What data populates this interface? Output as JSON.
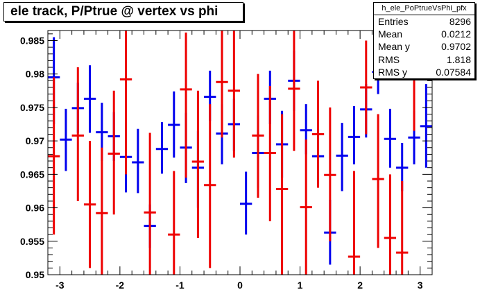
{
  "title": "ele track, P/Ptrue @ vertex vs phi",
  "stats": {
    "name": "h_ele_PoPtrueVsPhi_pfx",
    "rows": [
      {
        "label": "Entries",
        "value": "8296"
      },
      {
        "label": "Mean",
        "value": "0.0212"
      },
      {
        "label": "Mean y",
        "value": "0.9702"
      },
      {
        "label": "RMS",
        "value": "1.818"
      },
      {
        "label": "RMS y",
        "value": "0.07584"
      }
    ]
  },
  "chart_data": {
    "type": "scatter",
    "title": "ele track, P/Ptrue @ vertex vs phi",
    "xlabel": "",
    "ylabel": "",
    "xlim": [
      -3.2,
      3.2
    ],
    "ylim": [
      0.95,
      0.9865
    ],
    "grid": false,
    "x_ticks": [
      -3,
      -2,
      -1,
      0,
      1,
      2,
      3
    ],
    "x_tick_labels": [
      "-3",
      "-2",
      "-1",
      "0",
      "1",
      "2",
      "3"
    ],
    "y_ticks": [
      0.95,
      0.955,
      0.96,
      0.965,
      0.97,
      0.975,
      0.98,
      0.985
    ],
    "y_tick_labels": [
      "0.95",
      "0.955",
      "0.96",
      "0.965",
      "0.97",
      "0.975",
      "0.98",
      "0.985"
    ],
    "colors": {
      "blue": "#0000ee",
      "red": "#ee0000"
    },
    "bin_half_width": 0.1,
    "series": [
      {
        "color": "#0000ee",
        "points": [
          {
            "x": -3.1,
            "y": 0.9795,
            "lo": 0.9725,
            "hi": 0.9855
          },
          {
            "x": -2.9,
            "y": 0.9702,
            "lo": 0.9655,
            "hi": 0.9748
          },
          {
            "x": -2.7,
            "y": 0.9749,
            "lo": 0.9712,
            "hi": 0.9787
          },
          {
            "x": -2.5,
            "y": 0.9763,
            "lo": 0.9712,
            "hi": 0.9813
          },
          {
            "x": -2.3,
            "y": 0.9713,
            "lo": 0.967,
            "hi": 0.9757
          },
          {
            "x": -2.1,
            "y": 0.9707,
            "lo": 0.967,
            "hi": 0.9743
          },
          {
            "x": -1.9,
            "y": 0.9676,
            "lo": 0.9623,
            "hi": 0.9728
          },
          {
            "x": -1.7,
            "y": 0.9668,
            "lo": 0.9622,
            "hi": 0.9718
          },
          {
            "x": -1.5,
            "y": 0.9573,
            "lo": 0.954,
            "hi": 0.9605
          },
          {
            "x": -1.3,
            "y": 0.9688,
            "lo": 0.9651,
            "hi": 0.9728
          },
          {
            "x": -1.1,
            "y": 0.9724,
            "lo": 0.9675,
            "hi": 0.9774
          },
          {
            "x": -0.9,
            "y": 0.969,
            "lo": 0.9637,
            "hi": 0.9742
          },
          {
            "x": -0.7,
            "y": 0.966,
            "lo": 0.96,
            "hi": 0.9715
          },
          {
            "x": -0.5,
            "y": 0.9766,
            "lo": 0.973,
            "hi": 0.9805
          },
          {
            "x": -0.3,
            "y": 0.9711,
            "lo": 0.9665,
            "hi": 0.9755
          },
          {
            "x": -0.1,
            "y": 0.9725,
            "lo": 0.9685,
            "hi": 0.9763
          },
          {
            "x": 0.1,
            "y": 0.9606,
            "lo": 0.956,
            "hi": 0.9654
          },
          {
            "x": 0.3,
            "y": 0.9682,
            "lo": 0.963,
            "hi": 0.9738
          },
          {
            "x": 0.5,
            "y": 0.9763,
            "lo": 0.9725,
            "hi": 0.9805
          },
          {
            "x": 0.7,
            "y": 0.9695,
            "lo": 0.9645,
            "hi": 0.9745
          },
          {
            "x": 0.9,
            "y": 0.979,
            "lo": 0.9745,
            "hi": 0.9835
          },
          {
            "x": 1.1,
            "y": 0.9716,
            "lo": 0.968,
            "hi": 0.9755
          },
          {
            "x": 1.3,
            "y": 0.9677,
            "lo": 0.9635,
            "hi": 0.9718
          },
          {
            "x": 1.5,
            "y": 0.9563,
            "lo": 0.9515,
            "hi": 0.9612
          },
          {
            "x": 1.7,
            "y": 0.9678,
            "lo": 0.9625,
            "hi": 0.9727
          },
          {
            "x": 1.9,
            "y": 0.9706,
            "lo": 0.9665,
            "hi": 0.9752
          },
          {
            "x": 2.1,
            "y": 0.9747,
            "lo": 0.9705,
            "hi": 0.9785
          },
          {
            "x": 2.3,
            "y": 0.9803,
            "lo": 0.977,
            "hi": 0.9835
          },
          {
            "x": 2.5,
            "y": 0.9703,
            "lo": 0.966,
            "hi": 0.9748
          },
          {
            "x": 2.7,
            "y": 0.966,
            "lo": 0.9625,
            "hi": 0.9697
          },
          {
            "x": 2.9,
            "y": 0.9705,
            "lo": 0.9665,
            "hi": 0.9745
          },
          {
            "x": 3.1,
            "y": 0.9722,
            "lo": 0.966,
            "hi": 0.9785
          }
        ]
      },
      {
        "color": "#ee0000",
        "points": [
          {
            "x": -3.1,
            "y": 0.9677,
            "lo": 0.956,
            "hi": 0.9795
          },
          {
            "x": -2.7,
            "y": 0.9708,
            "lo": 0.961,
            "hi": 0.981
          },
          {
            "x": -2.5,
            "y": 0.9605,
            "lo": 0.951,
            "hi": 0.97
          },
          {
            "x": -2.3,
            "y": 0.9592,
            "lo": 0.95,
            "hi": 0.969
          },
          {
            "x": -2.1,
            "y": 0.9681,
            "lo": 0.959,
            "hi": 0.9775
          },
          {
            "x": -1.9,
            "y": 0.9792,
            "lo": 0.965,
            "hi": 0.987
          },
          {
            "x": -1.5,
            "y": 0.9593,
            "lo": 0.95,
            "hi": 0.9712
          },
          {
            "x": -1.1,
            "y": 0.956,
            "lo": 0.95,
            "hi": 0.9655
          },
          {
            "x": -0.9,
            "y": 0.9777,
            "lo": 0.9645,
            "hi": 0.9862
          },
          {
            "x": -0.7,
            "y": 0.9669,
            "lo": 0.9555,
            "hi": 0.9775
          },
          {
            "x": -0.5,
            "y": 0.9634,
            "lo": 0.951,
            "hi": 0.9755
          },
          {
            "x": -0.3,
            "y": 0.9788,
            "lo": 0.9705,
            "hi": 0.987
          },
          {
            "x": -0.1,
            "y": 0.9775,
            "lo": 0.9675,
            "hi": 0.987
          },
          {
            "x": 0.3,
            "y": 0.9708,
            "lo": 0.9615,
            "hi": 0.98
          },
          {
            "x": 0.5,
            "y": 0.9682,
            "lo": 0.958,
            "hi": 0.9782
          },
          {
            "x": 0.7,
            "y": 0.9628,
            "lo": 0.95,
            "hi": 0.974
          },
          {
            "x": 0.9,
            "y": 0.9778,
            "lo": 0.9685,
            "hi": 0.987
          },
          {
            "x": 1.1,
            "y": 0.9601,
            "lo": 0.95,
            "hi": 0.9702
          },
          {
            "x": 1.3,
            "y": 0.971,
            "lo": 0.963,
            "hi": 0.979
          },
          {
            "x": 1.5,
            "y": 0.9649,
            "lo": 0.955,
            "hi": 0.975
          },
          {
            "x": 1.9,
            "y": 0.9527,
            "lo": 0.95,
            "hi": 0.9655
          },
          {
            "x": 2.1,
            "y": 0.978,
            "lo": 0.971,
            "hi": 0.985
          },
          {
            "x": 2.3,
            "y": 0.9643,
            "lo": 0.954,
            "hi": 0.974
          },
          {
            "x": 2.5,
            "y": 0.9555,
            "lo": 0.95,
            "hi": 0.965
          },
          {
            "x": 2.7,
            "y": 0.9533,
            "lo": 0.95,
            "hi": 0.964
          },
          {
            "x": 2.9,
            "y": 0.9803,
            "lo": 0.9715,
            "hi": 0.987
          }
        ]
      }
    ]
  }
}
